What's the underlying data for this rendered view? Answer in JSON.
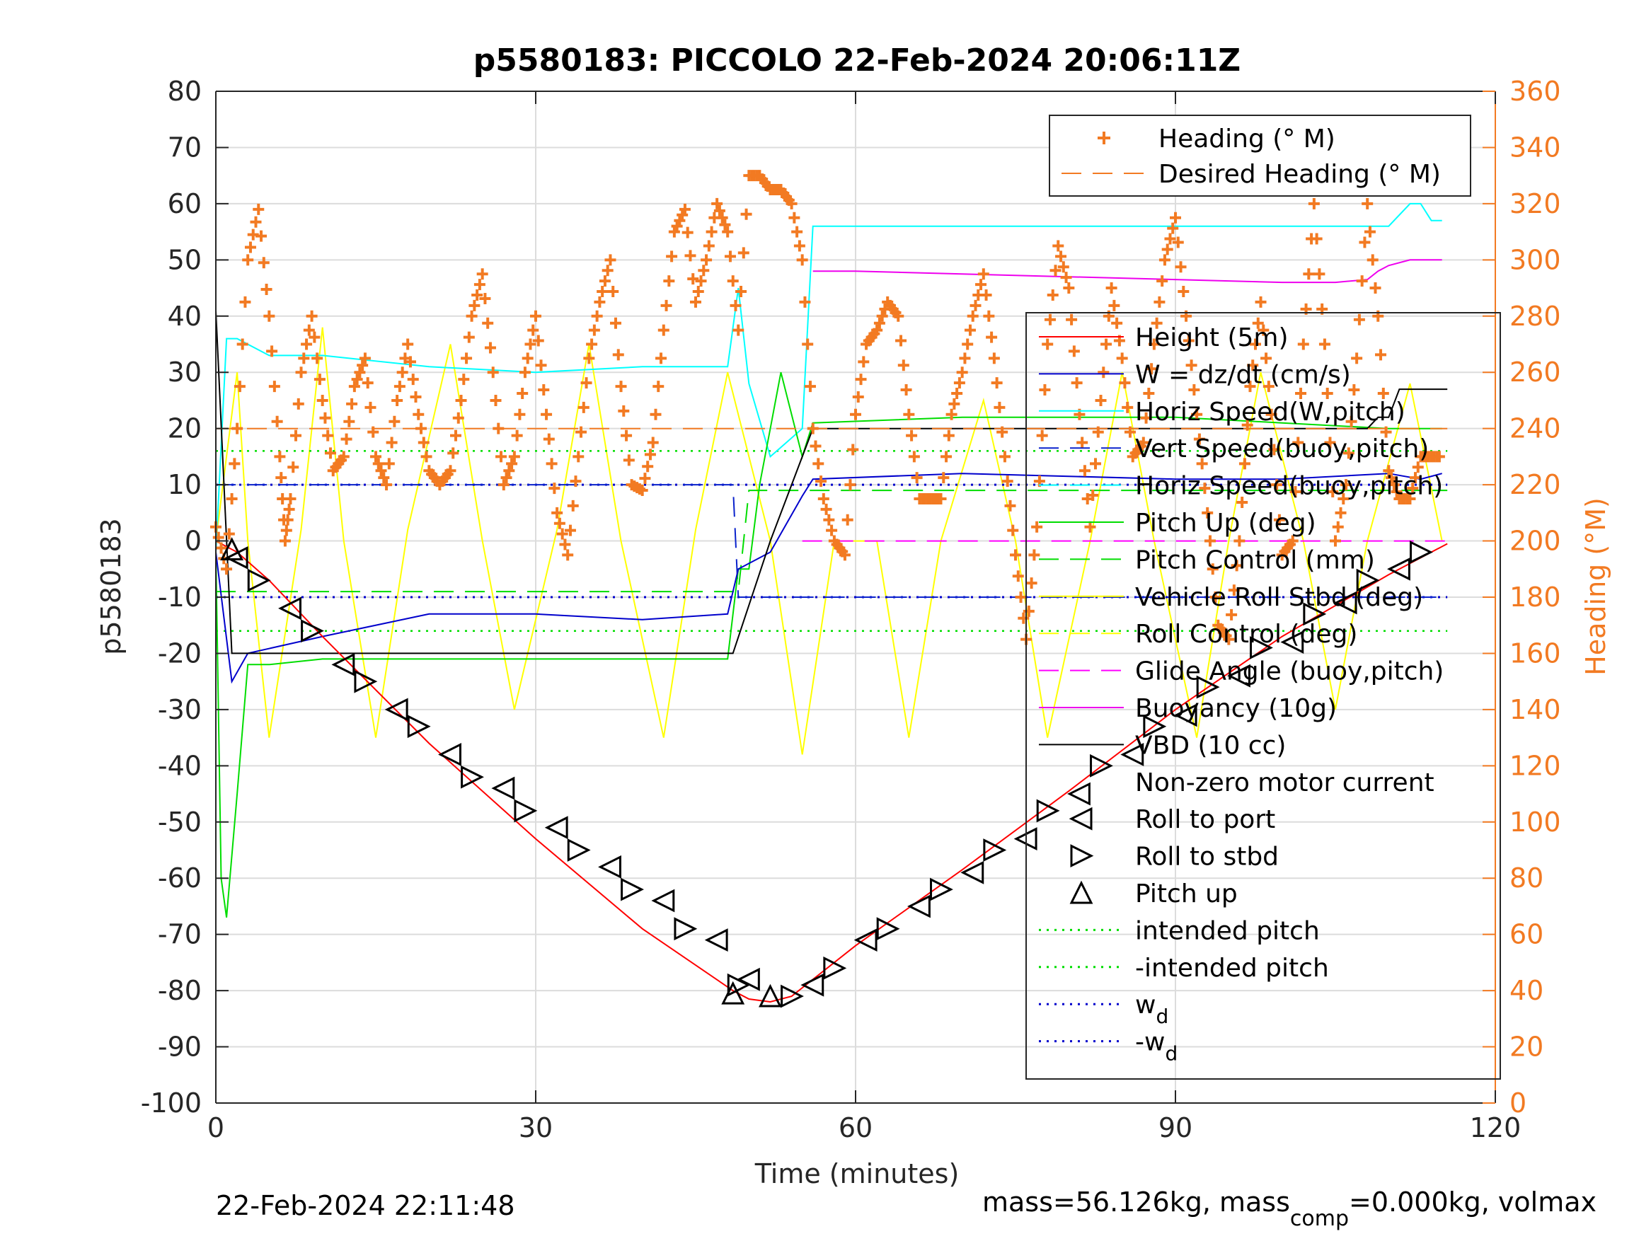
{
  "colors": {
    "axes": "#262626",
    "grid": "#dcdcdc",
    "heading": "#f27a22",
    "depth": "#ff0000",
    "w": "#0000cc",
    "horiz_speed": "#00ffff",
    "vert_speed_buoy": "#0a22cc",
    "pitch": "#00dd00",
    "roll": "#ffff00",
    "glide": "#ff00ff",
    "buoyancy": "#ee00ee",
    "vbd": "#000000",
    "marker": "#000000"
  },
  "footer": {
    "left": "22-Feb-2024 22:11:48",
    "right_prefix": "mass=56.126kg, mass",
    "right_sub": "comp",
    "right_suffix": "=0.000kg, volmax"
  },
  "chart_data": {
    "type": "line",
    "title": "p5580183: PICCOLO 22-Feb-2024 20:06:11Z",
    "xlabel": "Time (minutes)",
    "ylabel": "p5580183",
    "ylabel_right": "Heading (°M)",
    "xlim": [
      0,
      120
    ],
    "ylim": [
      -100,
      80
    ],
    "ylim_right": [
      0,
      360
    ],
    "xticks": [
      0,
      30,
      60,
      90,
      120
    ],
    "yticks": [
      80,
      70,
      60,
      50,
      40,
      30,
      20,
      10,
      0,
      -10,
      -20,
      -30,
      -40,
      -50,
      -60,
      -70,
      -80,
      -90,
      -100
    ],
    "yticks_right": [
      360,
      340,
      320,
      300,
      280,
      260,
      240,
      220,
      200,
      180,
      160,
      140,
      120,
      100,
      80,
      60,
      40,
      20,
      0
    ],
    "grid": true,
    "legend_heading": [
      {
        "label": "Heading (° M)",
        "style": "plus",
        "color": "#f27a22"
      },
      {
        "label": "Desired Heading (° M)",
        "style": "dash",
        "color": "#f27a22"
      }
    ],
    "legend_main": [
      {
        "label": "Height (5m)",
        "style": "solid",
        "color": "#ff0000"
      },
      {
        "label": "W = dz/dt (cm/s)",
        "style": "solid",
        "color": "#0000cc"
      },
      {
        "label": "Horiz Speed(W,pitch)",
        "style": "solid",
        "color": "#00ffff"
      },
      {
        "label": "Vert Speed(buoy,pitch)",
        "style": "dash",
        "color": "#0a22cc"
      },
      {
        "label": "Horiz Speed(buoy,pitch)",
        "style": "dash",
        "color": "#00ffff"
      },
      {
        "label": "Pitch Up (deg)",
        "style": "solid",
        "color": "#00dd00"
      },
      {
        "label": "Pitch Control (mm)",
        "style": "dash",
        "color": "#00dd00"
      },
      {
        "label": "Vehicle Roll Stbd (deg)",
        "style": "solid",
        "color": "#ffff00"
      },
      {
        "label": "Roll Control (deg)",
        "style": "dash",
        "color": "#ffff00"
      },
      {
        "label": "Glide Angle (buoy,pitch)",
        "style": "dash",
        "color": "#ff00ff"
      },
      {
        "label": "Buoyancy (10g)",
        "style": "solid",
        "color": "#ee00ee"
      },
      {
        "label": "VBD (10 cc)",
        "style": "solid",
        "color": "#000000"
      },
      {
        "label": "Non-zero motor current",
        "style": "none",
        "color": "#000000"
      },
      {
        "label": "Roll to port",
        "style": "tri-left",
        "color": "#000000"
      },
      {
        "label": "Roll to stbd",
        "style": "tri-right",
        "color": "#000000"
      },
      {
        "label": "Pitch up",
        "style": "tri-up",
        "color": "#000000"
      },
      {
        "label": "intended pitch",
        "style": "dot",
        "color": "#00dd00"
      },
      {
        "label": "-intended pitch",
        "style": "dot",
        "color": "#00dd00"
      },
      {
        "label": "w",
        "sub": "d",
        "style": "dot",
        "color": "#0000cc"
      },
      {
        "label": "-w",
        "sub": "d",
        "style": "dot",
        "color": "#0000cc"
      }
    ],
    "series": {
      "depth": {
        "x": [
          0,
          2,
          5,
          10,
          20,
          30,
          40,
          48.5,
          50,
          52,
          54,
          55,
          60,
          70,
          80,
          90,
          100,
          110,
          115.5
        ],
        "y": [
          0,
          -2,
          -7,
          -17,
          -36,
          -53,
          -69,
          -80,
          -81.5,
          -82,
          -81,
          -79.5,
          -72,
          -58.5,
          -44.5,
          -30,
          -17,
          -6,
          -0.5
        ]
      },
      "heading": {
        "x": [
          0,
          1,
          2,
          3,
          4,
          5,
          6,
          6.5,
          7,
          8,
          9,
          10,
          11,
          12,
          13,
          14,
          15,
          16,
          17,
          18,
          19,
          20,
          21,
          22,
          23,
          24,
          25,
          26,
          27,
          28,
          29,
          30,
          31,
          32,
          33,
          34,
          35,
          36,
          37,
          38,
          39,
          40,
          41,
          42,
          43,
          44,
          45,
          46,
          47,
          48,
          49,
          50,
          51,
          52,
          53,
          54,
          55,
          56,
          57,
          58,
          59,
          60,
          61,
          62,
          63,
          64,
          65,
          66,
          67,
          68,
          69,
          70,
          71,
          72,
          73,
          74,
          75,
          76,
          77,
          78,
          79,
          80,
          81,
          82,
          83,
          84,
          85,
          86,
          87,
          88,
          89,
          90,
          91,
          92,
          93,
          94,
          95,
          96,
          97,
          98,
          99,
          100,
          101,
          102,
          103,
          104,
          105,
          106,
          107,
          108,
          109,
          110,
          111,
          112,
          113,
          114,
          115
        ],
        "y": [
          205,
          190,
          240,
          300,
          318,
          280,
          230,
          200,
          215,
          260,
          280,
          250,
          225,
          230,
          255,
          265,
          230,
          220,
          250,
          270,
          245,
          225,
          220,
          225,
          250,
          280,
          295,
          260,
          220,
          230,
          260,
          280,
          245,
          210,
          195,
          230,
          265,
          285,
          300,
          255,
          220,
          218,
          235,
          275,
          310,
          318,
          285,
          300,
          320,
          310,
          275,
          330,
          330,
          325,
          325,
          320,
          300,
          240,
          215,
          200,
          195,
          245,
          270,
          275,
          285,
          280,
          245,
          215,
          215,
          215,
          245,
          260,
          280,
          295,
          265,
          230,
          195,
          165,
          205,
          270,
          305,
          290,
          245,
          205,
          250,
          290,
          265,
          230,
          235,
          270,
          300,
          315,
          280,
          245,
          210,
          170,
          165,
          200,
          255,
          285,
          245,
          195,
          200,
          270,
          320,
          270,
          200,
          220,
          265,
          320,
          280,
          225,
          215,
          215,
          230,
          230,
          230
        ]
      },
      "desired_heading": {
        "x": [
          0,
          115.5
        ],
        "y": [
          240,
          240
        ]
      },
      "w": {
        "x": [
          0,
          1.5,
          3,
          10,
          20,
          30,
          40,
          48,
          49,
          52,
          55,
          56,
          70,
          90,
          100,
          110,
          113,
          115
        ],
        "y": [
          -2,
          -25,
          -20,
          -17,
          -13,
          -13,
          -14,
          -13,
          -5,
          -2,
          8,
          11,
          12,
          11,
          11,
          12,
          11,
          12
        ]
      },
      "horiz_speed_w": {
        "x": [
          0,
          1,
          2,
          5,
          10,
          20,
          30,
          40,
          48,
          49,
          50,
          52,
          55,
          56,
          70,
          90,
          100,
          110,
          112,
          113,
          114,
          115
        ],
        "y": [
          -2,
          36,
          36,
          33,
          33,
          31,
          30,
          31,
          31,
          45,
          28,
          15,
          20,
          56,
          56,
          56,
          56,
          56,
          60,
          60,
          57,
          57
        ]
      },
      "vert_speed_buoy": {
        "x": [
          0,
          48.5,
          49,
          115.5
        ],
        "y": [
          10,
          10,
          -10,
          -10
        ]
      },
      "pitch": {
        "x": [
          0,
          0.5,
          1,
          2,
          3,
          5,
          10,
          20,
          30,
          40,
          48,
          49,
          50,
          51,
          52,
          53,
          55,
          56,
          70,
          90,
          100,
          110,
          115
        ],
        "y": [
          -2,
          -60,
          -67,
          -45,
          -22,
          -22,
          -21,
          -21,
          -21,
          -21,
          -21,
          -5,
          -5,
          10,
          20,
          30,
          15,
          21,
          22,
          22,
          21,
          20,
          20
        ]
      },
      "pitch_control": {
        "x": [
          0,
          49,
          50,
          115.5
        ],
        "y": [
          -9,
          -9,
          9,
          9
        ]
      },
      "roll": {
        "x": [
          0,
          2,
          3,
          5,
          8,
          10,
          12,
          15,
          18,
          22,
          25,
          28,
          32,
          35,
          38,
          42,
          45,
          48,
          52,
          55,
          58,
          62,
          65,
          68,
          72,
          75,
          78,
          82,
          85,
          88,
          92,
          95,
          98,
          102,
          105,
          108,
          112,
          115
        ],
        "y": [
          0,
          30,
          0,
          -35,
          2,
          38,
          0,
          -35,
          2,
          35,
          0,
          -30,
          2,
          35,
          0,
          -35,
          2,
          30,
          0,
          -38,
          0,
          0,
          -35,
          0,
          25,
          0,
          -35,
          0,
          30,
          0,
          -35,
          0,
          30,
          0,
          -30,
          0,
          28,
          0
        ]
      },
      "glide_angle": {
        "x": [
          55,
          115.5
        ],
        "y": [
          0,
          0
        ]
      },
      "buoyancy": {
        "x": [
          56,
          60,
          70,
          80,
          90,
          100,
          105,
          108,
          109,
          110,
          112,
          115
        ],
        "y": [
          48,
          48,
          47.5,
          47,
          46.5,
          46,
          46,
          46.5,
          48,
          49,
          50,
          50
        ]
      },
      "vbd": {
        "x": [
          0,
          1.5,
          2.5,
          48.5,
          52,
          55,
          56,
          108,
          109,
          110,
          111,
          115.5
        ],
        "y": [
          41,
          -20,
          -20,
          -20,
          0,
          15,
          20,
          20,
          22,
          22,
          27,
          27
        ]
      },
      "intended_pitch": {
        "x": [
          0,
          115.5
        ],
        "y": [
          16,
          16
        ]
      },
      "neg_intended_pitch": {
        "x": [
          0,
          115.5
        ],
        "y": [
          -16,
          -16
        ]
      },
      "wd": {
        "x": [
          0,
          115.5
        ],
        "y": [
          10,
          10
        ]
      },
      "neg_wd": {
        "x": [
          0,
          115.5
        ],
        "y": [
          -10,
          -10
        ]
      }
    },
    "markers": {
      "roll_to_port": {
        "x": [
          2,
          7,
          12,
          17,
          22,
          27,
          32,
          37,
          42,
          47,
          50,
          56,
          61,
          66,
          71,
          76,
          81,
          86,
          91,
          96,
          101,
          106,
          111
        ],
        "y": [
          -3,
          -12,
          -22,
          -30,
          -38,
          -44,
          -51,
          -58,
          -64,
          -71,
          -78,
          -79,
          -71,
          -65,
          -59,
          -53,
          -45,
          -38,
          -31,
          -24,
          -18,
          -11,
          -5
        ]
      },
      "roll_to_stbd": {
        "x": [
          4,
          9,
          14,
          19,
          24,
          29,
          34,
          39,
          44,
          49,
          54,
          58,
          63,
          68,
          73,
          78,
          83,
          88,
          93,
          98,
          103,
          108,
          113
        ],
        "y": [
          -7,
          -16,
          -25,
          -33,
          -42,
          -48,
          -55,
          -62,
          -69,
          -79,
          -81,
          -76,
          -69,
          -62,
          -55,
          -48,
          -40,
          -33,
          -26,
          -19,
          -13,
          -7,
          -2
        ]
      },
      "pitch_up": {
        "x": [
          1.5,
          48.5,
          52
        ],
        "y": [
          -1.5,
          -80.5,
          -81
        ]
      }
    }
  }
}
